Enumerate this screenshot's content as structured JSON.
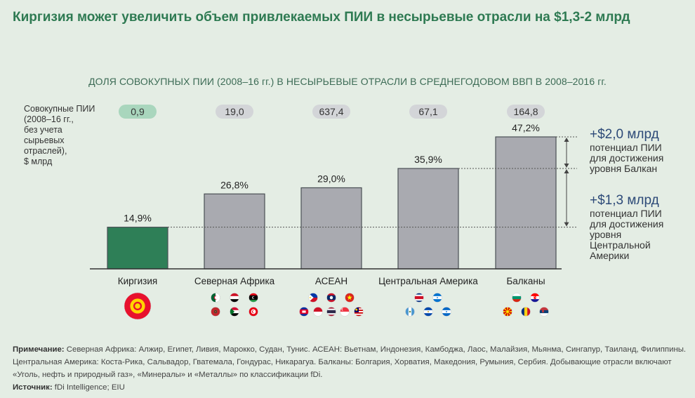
{
  "header": {
    "title": "Киргизия может увеличить объем привлекаемых ПИИ в несырьевые отрасли на $1,3-2 млрд"
  },
  "chart_data": {
    "type": "bar",
    "title": "ДОЛЯ СОВОКУПНЫХ ПИИ (2008–16 гг.) В НЕСЫРЬЕВЫЕ ОТРАСЛИ В СРЕДНЕГОДОВОМ ВВП В 2008–2016 гг.",
    "ylabel_lines": [
      "Совокупные ПИИ",
      "(2008–16 гг.,",
      "без учета",
      "сырьевых",
      "отраслей),",
      "$ млрд"
    ],
    "categories": [
      "Киргизия",
      "Северная Африка",
      "АСЕАН",
      "Центральная Америка",
      "Балканы"
    ],
    "values": [
      14.9,
      26.8,
      29.0,
      35.9,
      47.2
    ],
    "value_labels": [
      "14,9%",
      "26,8%",
      "29,0%",
      "35,9%",
      "47,2%"
    ],
    "fdi_totals": [
      "0,9",
      "19,0",
      "637,4",
      "67,1",
      "164,8"
    ],
    "bar_colors": [
      "#2e7f57",
      "#a9aab0",
      "#a9aab0",
      "#a9aab0",
      "#a9aab0"
    ],
    "ylim": [
      0,
      50
    ],
    "annotations": [
      {
        "amount": "+$2,0 млрд",
        "lines": [
          "потенциал ПИИ",
          "для достижения",
          "уровня Балкан"
        ]
      },
      {
        "amount": "+$1,3 млрд",
        "lines": [
          "потенциал ПИИ",
          "для достижения",
          "уровня",
          "Центральной",
          "Америки"
        ]
      }
    ]
  },
  "flags": [
    {
      "group": "Киргизия",
      "items": [
        "flag-kyrgyzstan"
      ]
    },
    {
      "group": "Северная Африка",
      "items": [
        "flag-algeria",
        "flag-egypt",
        "flag-libya",
        "flag-morocco",
        "flag-sudan",
        "flag-tunisia"
      ]
    },
    {
      "group": "АСЕАН",
      "items": [
        "flag-philippines",
        "flag-laos",
        "flag-vietnam",
        "flag-cambodia",
        "flag-indonesia",
        "flag-thailand",
        "flag-singapore",
        "flag-malaysia",
        "flag-myanmar"
      ]
    },
    {
      "group": "Центральная Америка",
      "items": [
        "flag-costa-rica",
        "flag-honduras",
        "flag-guatemala",
        "flag-el-salvador",
        "flag-nicaragua"
      ]
    },
    {
      "group": "Балканы",
      "items": [
        "flag-bulgaria",
        "flag-croatia",
        "flag-macedonia",
        "flag-romania",
        "flag-serbia"
      ]
    }
  ],
  "note": {
    "label": "Примечание:",
    "text": "Северная Африка: Алжир, Египет, Ливия, Марокко, Судан, Тунис. АСЕАН: Вьетнам, Индонезия, Камбоджа, Лаос, Малайзия, Мьянма, Сингапур, Таиланд, Филиппины. Центральная Америка: Коста-Рика, Сальвадор, Гватемала, Гондурас, Никарагуа. Балканы: Болгария, Хорватия, Македония, Румыния, Сербия. Добывающие отрасли включают «Уголь, нефть и природный газ», «Минералы» и «Металлы» по классификации fDi.",
    "source_label": "Источник:",
    "source_text": "fDi Intelligence; EIU"
  },
  "colors": {
    "accent": "#2e7a52",
    "pill_green": "#a9d6bd",
    "pill_grey": "#d3d5d8"
  }
}
